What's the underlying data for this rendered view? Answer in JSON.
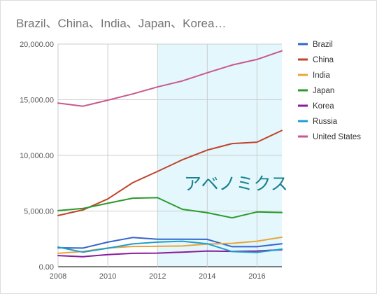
{
  "chart_data": {
    "type": "line",
    "title": "Brazil、China、India、Japan、Korea…",
    "xlabel": "",
    "ylabel": "",
    "x": [
      2008,
      2009,
      2010,
      2011,
      2012,
      2013,
      2014,
      2015,
      2016,
      2017
    ],
    "xlim": [
      2008,
      2017
    ],
    "ylim": [
      0,
      20000
    ],
    "x_ticks": [
      2008,
      2010,
      2012,
      2014,
      2016
    ],
    "x_tick_labels": [
      "2008",
      "2010",
      "2012",
      "2014",
      "2016"
    ],
    "y_ticks": [
      0,
      5000,
      10000,
      15000,
      20000
    ],
    "y_tick_labels": [
      "0.00",
      "5,000.00",
      "10,000.00",
      "15,000.00",
      "20,000.00"
    ],
    "grid": true,
    "legend_position": "right",
    "highlight": {
      "x_start": 2012,
      "x_end": 2017,
      "label": "アベノミクス",
      "color": "#e3f7fc"
    },
    "series": [
      {
        "name": "Brazil",
        "color": "#3366cc",
        "values": [
          1700,
          1670,
          2210,
          2620,
          2470,
          2470,
          2460,
          1800,
          1800,
          2060
        ]
      },
      {
        "name": "China",
        "color": "#c0442b",
        "values": [
          4600,
          5100,
          6090,
          7550,
          8560,
          9610,
          10480,
          11060,
          11190,
          12240
        ]
      },
      {
        "name": "India",
        "color": "#e8a53a",
        "values": [
          1200,
          1370,
          1680,
          1820,
          1830,
          1860,
          2040,
          2100,
          2290,
          2650
        ]
      },
      {
        "name": "Japan",
        "color": "#2c9a2c",
        "values": [
          5040,
          5230,
          5700,
          6160,
          6200,
          5160,
          4850,
          4390,
          4920,
          4870
        ]
      },
      {
        "name": "Korea",
        "color": "#8b1a9c",
        "values": [
          1000,
          900,
          1090,
          1200,
          1220,
          1310,
          1410,
          1380,
          1410,
          1530
        ]
      },
      {
        "name": "Russia",
        "color": "#1f9ed1",
        "values": [
          1760,
          1310,
          1660,
          2050,
          2210,
          2290,
          2060,
          1360,
          1280,
          1580
        ]
      },
      {
        "name": "United States",
        "color": "#c9588f",
        "values": [
          14700,
          14420,
          14960,
          15520,
          16150,
          16690,
          17430,
          18120,
          18620,
          19390
        ]
      }
    ]
  }
}
